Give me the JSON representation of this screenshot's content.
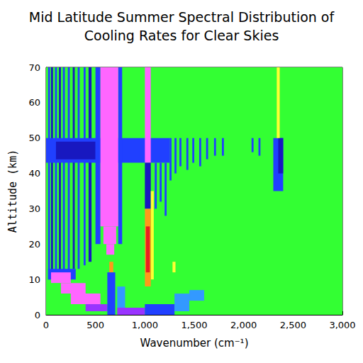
{
  "chart_data": {
    "type": "heatmap",
    "title": [
      "Mid Latitude Summer Spectral Distribution of",
      "Cooling Rates for Clear Skies"
    ],
    "xlabel": "Wavenumber (cm⁻¹)",
    "ylabel": "Altitude (km)",
    "xlim": [
      0,
      3000
    ],
    "xticks": [
      0,
      500,
      1000,
      1500,
      2000,
      2500,
      3000
    ],
    "ylim": [
      0,
      70
    ],
    "yticks": [
      0,
      10,
      20,
      30,
      40,
      50,
      60,
      70
    ],
    "grid": false,
    "color_range": [
      -0.3,
      0.5
    ],
    "cells": [
      [
        0,
        3000,
        0,
        70,
        0
      ],
      [
        20,
        40,
        10,
        70,
        0.2
      ],
      [
        50,
        70,
        10,
        70,
        0.3
      ],
      [
        90,
        110,
        11,
        70,
        0.2
      ],
      [
        130,
        150,
        12,
        70,
        0.3
      ],
      [
        170,
        190,
        12,
        70,
        0.2
      ],
      [
        220,
        240,
        12,
        70,
        0.2
      ],
      [
        270,
        290,
        13,
        70,
        0.3
      ],
      [
        320,
        340,
        13,
        70,
        0.2
      ],
      [
        380,
        400,
        14,
        70,
        0.2
      ],
      [
        430,
        460,
        15,
        70,
        0.3
      ],
      [
        0,
        1250,
        43,
        50,
        0.2
      ],
      [
        100,
        500,
        44,
        49,
        0.3
      ],
      [
        1250,
        1270,
        38,
        50,
        0.2
      ],
      [
        1300,
        1320,
        40,
        50,
        0.2
      ],
      [
        1350,
        1370,
        42,
        50,
        0.2
      ],
      [
        1420,
        1440,
        41,
        50,
        0.2
      ],
      [
        1480,
        1500,
        43,
        50,
        0.2
      ],
      [
        1550,
        1570,
        42,
        50,
        0.2
      ],
      [
        1620,
        1640,
        44,
        50,
        0.2
      ],
      [
        1700,
        1720,
        45,
        50,
        0.2
      ],
      [
        1780,
        1800,
        45,
        50,
        0.2
      ],
      [
        2080,
        2100,
        46,
        50,
        0.2
      ],
      [
        2150,
        2170,
        45,
        50,
        0.2
      ],
      [
        2300,
        2400,
        35,
        50,
        0.2
      ],
      [
        2350,
        2400,
        40,
        50,
        0.3
      ],
      [
        2335,
        2365,
        50,
        70,
        -0.1
      ],
      [
        500,
        550,
        20,
        70,
        0.2
      ],
      [
        730,
        770,
        20,
        70,
        0.2
      ],
      [
        550,
        730,
        25,
        70,
        0.5
      ],
      [
        580,
        710,
        20,
        25,
        0.5
      ],
      [
        610,
        690,
        17,
        20,
        0.5
      ],
      [
        640,
        680,
        12,
        15,
        -0.2
      ],
      [
        20,
        300,
        10,
        13,
        0.2
      ],
      [
        50,
        250,
        9,
        12,
        0.5
      ],
      [
        150,
        400,
        6,
        9,
        0.5
      ],
      [
        250,
        550,
        3,
        6,
        0.5
      ],
      [
        400,
        620,
        1,
        3,
        0.4
      ],
      [
        620,
        700,
        0,
        12,
        0.2
      ],
      [
        720,
        1000,
        0,
        2,
        0.4
      ],
      [
        1000,
        1300,
        0,
        3,
        0.2
      ],
      [
        720,
        800,
        2,
        8,
        0.1
      ],
      [
        1300,
        1450,
        1,
        6,
        0.1
      ],
      [
        1450,
        1600,
        4,
        7,
        0.1
      ],
      [
        1100,
        1120,
        30,
        43,
        0.2
      ],
      [
        1150,
        1170,
        32,
        43,
        0.2
      ],
      [
        1200,
        1220,
        28,
        43,
        0.2
      ],
      [
        1000,
        1060,
        43,
        70,
        0.5
      ],
      [
        1000,
        1060,
        30,
        43,
        0.3
      ],
      [
        1060,
        1090,
        10,
        35,
        -0.1
      ],
      [
        1000,
        1060,
        8,
        30,
        -0.2
      ],
      [
        1010,
        1050,
        12,
        25,
        -0.3
      ],
      [
        1280,
        1310,
        12,
        15,
        -0.1
      ]
    ]
  }
}
